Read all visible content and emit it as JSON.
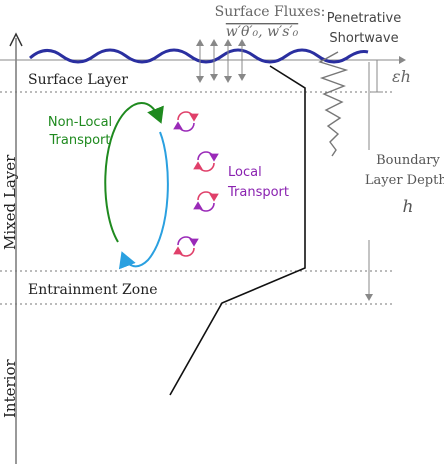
{
  "labels": {
    "surface_fluxes_title": "Surface Fluxes:",
    "surface_fluxes_terms": "w′θ′₀, w′s′₀",
    "penetrative_line1": "Penetrative",
    "penetrative_line2": "Shortwave",
    "eps_h": "εh",
    "surface_layer": "Surface Layer",
    "mixed_layer": "Mixed Layer",
    "nonlocal_line1": "Non-Local",
    "nonlocal_line2": "Transport",
    "local_line1": "Local",
    "local_line2": "Transport",
    "bld_line1": "Boundary",
    "bld_line2": "Layer Depth:",
    "bld_symbol": "h",
    "entrainment_zone": "Entrainment Zone",
    "interior": "Interior"
  },
  "colors": {
    "wave": "#2a2fa0",
    "nonlocal_green": "#1f8a1f",
    "nonlocal_blue": "#2aa0e0",
    "local_red": "#e0406a",
    "local_purple": "#9a2ab8",
    "local_text": "#8a22b0",
    "grey": "#888888",
    "text": "#222222"
  },
  "icons": {
    "local_eddy": "circular-arrows-icon",
    "shortwave": "decaying-wave-icon"
  }
}
